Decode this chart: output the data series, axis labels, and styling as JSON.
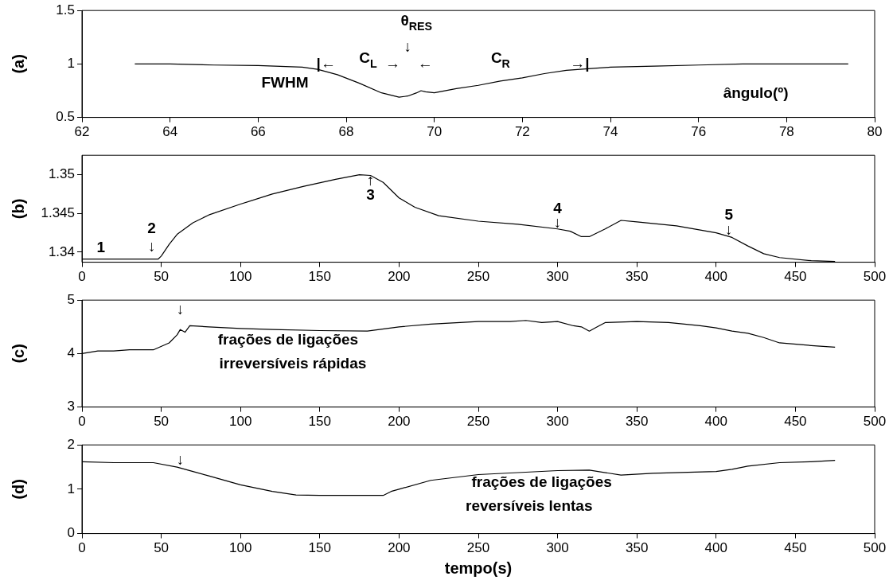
{
  "chart_data": [
    {
      "type": "line",
      "ylabel": "(a)",
      "color": "#000000",
      "marker": "none",
      "grid": false,
      "legend": false,
      "x": [
        63.2,
        64,
        65,
        66,
        67,
        67.35,
        67.8,
        68.3,
        68.8,
        69.2,
        69.4,
        69.6,
        69.7,
        69.8,
        70,
        70.5,
        71,
        71.5,
        72,
        72.5,
        73,
        73.5,
        74,
        75,
        76,
        77,
        78,
        79.4
      ],
      "values": [
        1.0,
        1.0,
        0.99,
        0.985,
        0.97,
        0.95,
        0.9,
        0.82,
        0.73,
        0.69,
        0.7,
        0.73,
        0.75,
        0.74,
        0.73,
        0.77,
        0.8,
        0.84,
        0.87,
        0.91,
        0.94,
        0.955,
        0.97,
        0.98,
        0.99,
        1.0,
        1.0,
        1.0
      ],
      "xlim": [
        62,
        80
      ],
      "xticks": [
        62,
        64,
        66,
        68,
        70,
        72,
        74,
        76,
        78,
        80
      ],
      "ylim": [
        0.5,
        1.5
      ],
      "yticks": [
        0.5,
        1,
        1.5
      ],
      "annotations": [
        "|←",
        "C$_{L}$",
        "→",
        "θ$_{RES}$",
        "↓",
        "←",
        "C$_{R}$",
        "→|",
        "FWHM",
        "ângulo(º)"
      ]
    },
    {
      "type": "line",
      "ylabel": "(b)",
      "color": "#000000",
      "marker": "none",
      "grid": false,
      "legend": false,
      "x": [
        0,
        20,
        48,
        50,
        55,
        60,
        70,
        80,
        100,
        120,
        140,
        160,
        175,
        182,
        190,
        200,
        210,
        225,
        250,
        275,
        300,
        308,
        315,
        320,
        330,
        340,
        350,
        375,
        400,
        410,
        420,
        430,
        440,
        460,
        475
      ],
      "values": [
        1.3391,
        1.3391,
        1.3391,
        1.3395,
        1.341,
        1.3423,
        1.3438,
        1.3448,
        1.3462,
        1.3475,
        1.3485,
        1.3494,
        1.35,
        1.3499,
        1.349,
        1.347,
        1.3458,
        1.3447,
        1.344,
        1.3436,
        1.343,
        1.3427,
        1.342,
        1.342,
        1.343,
        1.3441,
        1.3439,
        1.3434,
        1.3425,
        1.3419,
        1.3408,
        1.3398,
        1.3393,
        1.3389,
        1.3388
      ],
      "xlim": [
        0,
        500
      ],
      "xticks": [
        0,
        50,
        100,
        150,
        200,
        250,
        300,
        350,
        400,
        450,
        500
      ],
      "ylim": [
        1.3387,
        1.3525
      ],
      "yticks": [
        1.34,
        1.345,
        1.35
      ],
      "annotations": [
        "1",
        "2",
        "↓",
        "↑",
        "3",
        "4",
        "↓",
        "5",
        "↓"
      ]
    },
    {
      "type": "line",
      "ylabel": "(c)",
      "color": "#000000",
      "marker": "none",
      "grid": false,
      "legend": false,
      "x": [
        0,
        10,
        20,
        30,
        45,
        55,
        60,
        62,
        65,
        68,
        80,
        100,
        120,
        150,
        180,
        200,
        220,
        250,
        270,
        280,
        290,
        300,
        310,
        315,
        320,
        325,
        330,
        350,
        370,
        380,
        390,
        400,
        410,
        420,
        430,
        440,
        460,
        475
      ],
      "values": [
        4.0,
        4.05,
        4.05,
        4.07,
        4.07,
        4.2,
        4.35,
        4.45,
        4.4,
        4.52,
        4.5,
        4.47,
        4.45,
        4.43,
        4.42,
        4.5,
        4.55,
        4.6,
        4.6,
        4.62,
        4.58,
        4.6,
        4.52,
        4.5,
        4.42,
        4.5,
        4.58,
        4.6,
        4.58,
        4.55,
        4.52,
        4.48,
        4.42,
        4.38,
        4.3,
        4.2,
        4.15,
        4.12
      ],
      "xlim": [
        0,
        500
      ],
      "xticks": [
        0,
        50,
        100,
        150,
        200,
        250,
        300,
        350,
        400,
        450,
        500
      ],
      "ylim": [
        3,
        5
      ],
      "yticks": [
        3,
        4,
        5
      ],
      "annotations": [
        "↓",
        "frações de ligações",
        "irreversíveis rápidas"
      ]
    },
    {
      "type": "line",
      "ylabel": "(d)",
      "xlabel": "tempo(s)",
      "color": "#000000",
      "marker": "none",
      "grid": false,
      "legend": false,
      "x": [
        0,
        20,
        45,
        60,
        70,
        80,
        100,
        120,
        135,
        150,
        190,
        195,
        200,
        220,
        250,
        300,
        320,
        340,
        360,
        400,
        410,
        420,
        440,
        460,
        475
      ],
      "values": [
        1.62,
        1.6,
        1.6,
        1.5,
        1.4,
        1.3,
        1.1,
        0.95,
        0.87,
        0.86,
        0.86,
        0.95,
        1.0,
        1.2,
        1.33,
        1.42,
        1.43,
        1.32,
        1.36,
        1.4,
        1.45,
        1.52,
        1.6,
        1.62,
        1.65
      ],
      "xlim": [
        0,
        500
      ],
      "xticks": [
        0,
        50,
        100,
        150,
        200,
        250,
        300,
        350,
        400,
        450,
        500
      ],
      "ylim": [
        0,
        2
      ],
      "yticks": [
        0,
        1,
        2
      ],
      "annotations": [
        "↓",
        "frações de ligações",
        "reversíveis lentas"
      ]
    }
  ]
}
